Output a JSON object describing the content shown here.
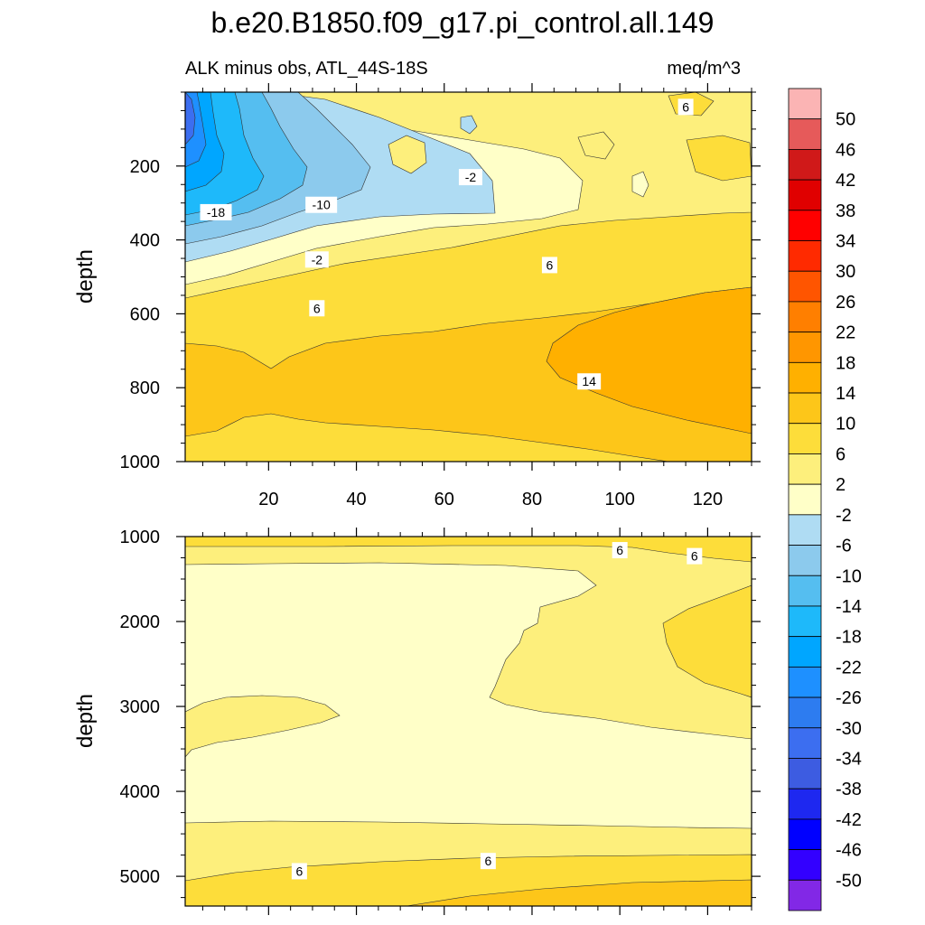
{
  "chart_data": {
    "type": "heatmap",
    "title": "b.e20.B1850.f09_g17.pi_control.all.149",
    "subtitle_left": "ALK minus obs, ATL_44S-18S",
    "subtitle_right": "meq/m^3",
    "panels": [
      {
        "ylabel": "depth",
        "ylim": [
          0,
          1000
        ],
        "xlim": [
          1,
          130
        ],
        "y_ticks": [
          200,
          400,
          600,
          800,
          1000
        ],
        "x_ticks": [
          20,
          40,
          60,
          80,
          100,
          120
        ],
        "contour_labels": [
          {
            "text": "-18",
            "x": 8,
            "y": 325
          },
          {
            "text": "-10",
            "x": 32,
            "y": 305
          },
          {
            "text": "-2",
            "x": 66,
            "y": 230
          },
          {
            "text": "-2",
            "x": 31,
            "y": 453
          },
          {
            "text": "6",
            "x": 84,
            "y": 468
          },
          {
            "text": "6",
            "x": 31,
            "y": 585
          },
          {
            "text": "14",
            "x": 93,
            "y": 783
          },
          {
            "text": "6",
            "x": 115,
            "y": 40
          }
        ]
      },
      {
        "ylabel": "depth",
        "ylim": [
          1000,
          5350
        ],
        "xlim": [
          1,
          130
        ],
        "y_ticks": [
          1000,
          2000,
          3000,
          4000,
          5000
        ],
        "contour_labels": [
          {
            "text": "6",
            "x": 100,
            "y": 1160
          },
          {
            "text": "6",
            "x": 117,
            "y": 1230
          },
          {
            "text": "6",
            "x": 70,
            "y": 4820
          },
          {
            "text": "6",
            "x": 27,
            "y": 4940
          }
        ]
      }
    ],
    "colorbar": {
      "labels": [
        "50",
        "46",
        "42",
        "38",
        "34",
        "30",
        "26",
        "22",
        "18",
        "14",
        "10",
        "6",
        "2",
        "-2",
        "-6",
        "-10",
        "-14",
        "-18",
        "-22",
        "-26",
        "-30",
        "-34",
        "-38",
        "-42",
        "-46",
        "-50"
      ],
      "colors": [
        "#fbb4b4",
        "#e65a5a",
        "#d01919",
        "#e00000",
        "#ff0000",
        "#ff2a00",
        "#ff5500",
        "#ff7f00",
        "#ff9600",
        "#ffb000",
        "#fdc619",
        "#fddd3a",
        "#fdef7c",
        "#ffffc8",
        "#afdcf3",
        "#8ccaed",
        "#55bef0",
        "#1eb9fa",
        "#00a6ff",
        "#1e90ff",
        "#2d7cf0",
        "#3c6ef0",
        "#3d5ce1",
        "#1e28f0",
        "#0000ff",
        "#3300ff",
        "#8228e6"
      ]
    }
  }
}
